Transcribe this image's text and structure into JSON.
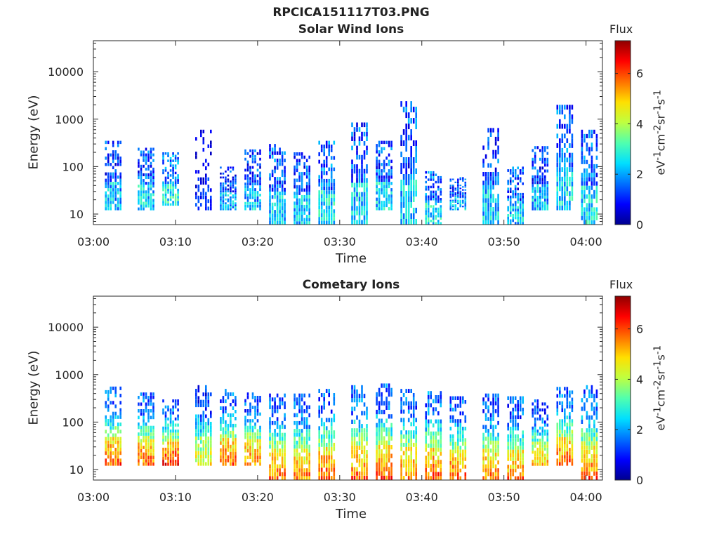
{
  "figure_title": "RPCICA151117T03.PNG",
  "colormap": [
    "#00008f",
    "#0000ff",
    "#0070ff",
    "#00dfff",
    "#50ffaf",
    "#bfff40",
    "#ffdf00",
    "#ff7000",
    "#ff0000",
    "#8f0000"
  ],
  "chart_data": [
    {
      "type": "heatmap",
      "title": "Solar Wind Ions",
      "xlabel": "Time",
      "ylabel": "Energy (eV)",
      "yscale": "log",
      "xlim": [
        "03:00",
        "04:02"
      ],
      "ylim": [
        6,
        45000
      ],
      "x_ticks": [
        "03:00",
        "03:10",
        "03:20",
        "03:30",
        "03:40",
        "03:50",
        "04:00"
      ],
      "y_ticks": [
        "10",
        "100",
        "1000",
        "10000"
      ],
      "colorbar": {
        "title": "Flux",
        "unit": "eV-1cm-2sr-1s-1",
        "range": [
          0,
          7.3
        ],
        "ticks": [
          "0",
          "2",
          "4",
          "6"
        ]
      },
      "bursts": [
        {
          "t": "03:02",
          "elo": 12,
          "ehi": 350,
          "peak": 3.0
        },
        {
          "t": "03:06",
          "elo": 12,
          "ehi": 250,
          "peak": 3.2
        },
        {
          "t": "03:09",
          "elo": 15,
          "ehi": 200,
          "peak": 3.6
        },
        {
          "t": "03:13",
          "elo": 12,
          "ehi": 600,
          "peak": 1.5
        },
        {
          "t": "03:16",
          "elo": 12,
          "ehi": 100,
          "peak": 3.0
        },
        {
          "t": "03:19",
          "elo": 12,
          "ehi": 230,
          "peak": 3.0
        },
        {
          "t": "03:22",
          "elo": 6,
          "ehi": 300,
          "peak": 3.2
        },
        {
          "t": "03:25",
          "elo": 6,
          "ehi": 200,
          "peak": 3.2
        },
        {
          "t": "03:28",
          "elo": 6,
          "ehi": 350,
          "peak": 3.4
        },
        {
          "t": "03:32",
          "elo": 6,
          "ehi": 850,
          "peak": 3.2
        },
        {
          "t": "03:35",
          "elo": 12,
          "ehi": 350,
          "peak": 3.3
        },
        {
          "t": "03:38",
          "elo": 6,
          "ehi": 2400,
          "peak": 3.2
        },
        {
          "t": "03:41",
          "elo": 6,
          "ehi": 80,
          "peak": 3.4
        },
        {
          "t": "03:44",
          "elo": 12,
          "ehi": 60,
          "peak": 3.0
        },
        {
          "t": "03:48",
          "elo": 6,
          "ehi": 650,
          "peak": 3.2
        },
        {
          "t": "03:51",
          "elo": 6,
          "ehi": 100,
          "peak": 3.2
        },
        {
          "t": "03:54",
          "elo": 12,
          "ehi": 270,
          "peak": 3.0
        },
        {
          "t": "03:57",
          "elo": 12,
          "ehi": 2000,
          "peak": 3.4
        },
        {
          "t": "04:00",
          "elo": 6,
          "ehi": 600,
          "peak": 3.4
        }
      ]
    },
    {
      "type": "heatmap",
      "title": "Cometary Ions",
      "xlabel": "Time",
      "ylabel": "Energy (eV)",
      "yscale": "log",
      "xlim": [
        "03:00",
        "04:02"
      ],
      "ylim": [
        6,
        45000
      ],
      "x_ticks": [
        "03:00",
        "03:10",
        "03:20",
        "03:30",
        "03:40",
        "03:50",
        "04:00"
      ],
      "y_ticks": [
        "10",
        "100",
        "1000",
        "10000"
      ],
      "colorbar": {
        "title": "Flux",
        "unit": "eV-1cm-2sr-1s-1",
        "range": [
          0,
          7.3
        ],
        "ticks": [
          "0",
          "2",
          "4",
          "6"
        ]
      },
      "bursts": [
        {
          "t": "03:02",
          "elo": 12,
          "ehi": 560,
          "peak": 6.6
        },
        {
          "t": "03:06",
          "elo": 12,
          "ehi": 420,
          "peak": 6.6
        },
        {
          "t": "03:09",
          "elo": 12,
          "ehi": 300,
          "peak": 7.0
        },
        {
          "t": "03:13",
          "elo": 12,
          "ehi": 600,
          "peak": 5.4
        },
        {
          "t": "03:16",
          "elo": 12,
          "ehi": 500,
          "peak": 6.6
        },
        {
          "t": "03:19",
          "elo": 12,
          "ehi": 420,
          "peak": 6.4
        },
        {
          "t": "03:22",
          "elo": 6,
          "ehi": 400,
          "peak": 6.6
        },
        {
          "t": "03:25",
          "elo": 6,
          "ehi": 400,
          "peak": 6.4
        },
        {
          "t": "03:28",
          "elo": 6,
          "ehi": 500,
          "peak": 6.6
        },
        {
          "t": "03:32",
          "elo": 6,
          "ehi": 600,
          "peak": 6.6
        },
        {
          "t": "03:35",
          "elo": 6,
          "ehi": 650,
          "peak": 6.6
        },
        {
          "t": "03:38",
          "elo": 6,
          "ehi": 500,
          "peak": 6.4
        },
        {
          "t": "03:41",
          "elo": 6,
          "ehi": 450,
          "peak": 6.8
        },
        {
          "t": "03:44",
          "elo": 6,
          "ehi": 350,
          "peak": 6.6
        },
        {
          "t": "03:48",
          "elo": 6,
          "ehi": 400,
          "peak": 6.4
        },
        {
          "t": "03:51",
          "elo": 6,
          "ehi": 350,
          "peak": 6.4
        },
        {
          "t": "03:54",
          "elo": 12,
          "ehi": 300,
          "peak": 5.8
        },
        {
          "t": "03:57",
          "elo": 12,
          "ehi": 550,
          "peak": 6.6
        },
        {
          "t": "04:00",
          "elo": 6,
          "ehi": 600,
          "peak": 6.6
        }
      ]
    }
  ]
}
